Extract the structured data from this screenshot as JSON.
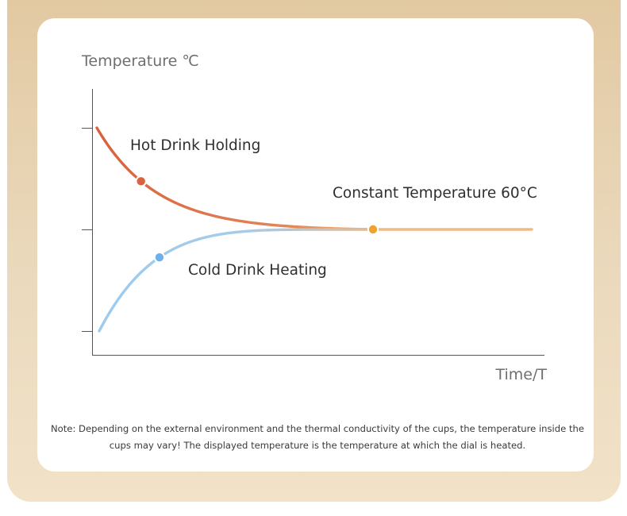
{
  "chart_data": {
    "type": "line",
    "xlabel": "Time/T",
    "ylabel": "Temperature ℃",
    "grid": false,
    "y_ticks": 3,
    "series": [
      {
        "name": "Hot Drink Holding",
        "color": "#d9633f",
        "marker_color": "#d9633f",
        "marker_t": 0.16
      },
      {
        "name": "Cold Drink Heating",
        "color": "#9ccbee",
        "marker_color": "#6fb0ea",
        "marker_t": 0.22
      },
      {
        "name": "Constant Temperature 60°C",
        "color": "#efbb84",
        "marker_color": "#eea22f",
        "value": 60
      }
    ]
  },
  "note": "Note: Depending on the external environment and the thermal conductivity of the cups, the temperature inside the cups may vary! The displayed temperature is the temperature at which the dial is heated."
}
